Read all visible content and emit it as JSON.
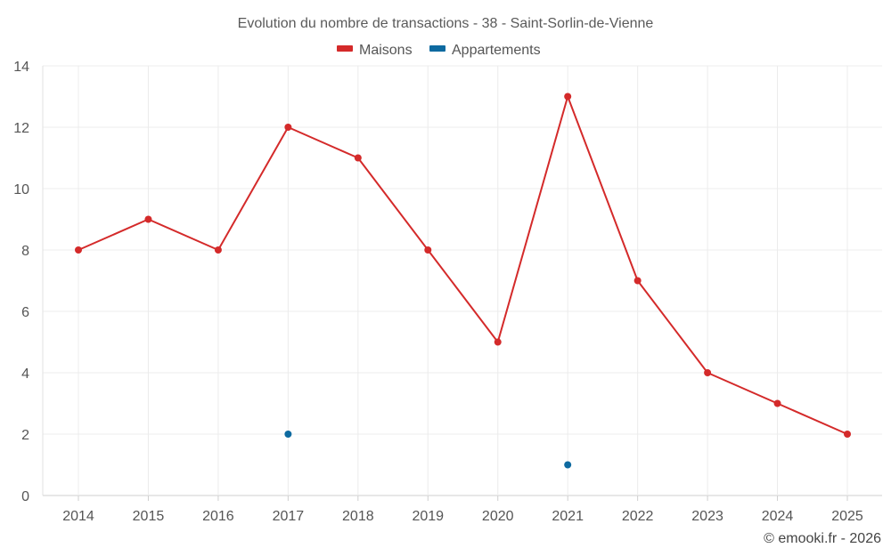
{
  "chart_data": {
    "type": "line",
    "title": "Evolution du nombre de transactions - 38 - Saint-Sorlin-de-Vienne",
    "categories": [
      "2014",
      "2015",
      "2016",
      "2017",
      "2018",
      "2019",
      "2020",
      "2021",
      "2022",
      "2023",
      "2024",
      "2025"
    ],
    "series": [
      {
        "name": "Maisons",
        "color": "#d42a2a",
        "values": [
          8,
          9,
          8,
          12,
          11,
          8,
          5,
          13,
          7,
          4,
          3,
          2
        ]
      },
      {
        "name": "Appartements",
        "color": "#0e6aa0",
        "values": [
          null,
          null,
          null,
          2,
          null,
          null,
          null,
          1,
          null,
          null,
          null,
          null
        ]
      }
    ],
    "ylim": [
      0,
      14
    ],
    "yticks": [
      "0",
      "2",
      "4",
      "6",
      "8",
      "10",
      "12",
      "14"
    ],
    "xlabel": "",
    "ylabel": "",
    "grid": true,
    "legend": "top-center"
  },
  "footer": {
    "credit": "© emooki.fr - 2026"
  }
}
